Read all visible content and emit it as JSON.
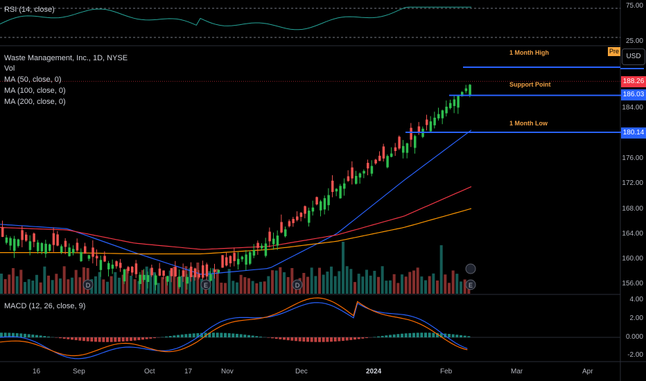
{
  "rsi": {
    "label": "RSI (14, close)",
    "ticks": [
      "75.00",
      "25.00"
    ]
  },
  "legend": {
    "symbol": "Waste Management, Inc., 1D, NYSE",
    "vol": "Vol",
    "ma50": "MA (50, close, 0)",
    "ma100": "MA (100, close, 0)",
    "ma200": "MA (200, close, 0)"
  },
  "macd": {
    "label": "MACD (12, 26, close, 9)",
    "ticks": [
      "4.00",
      "2.00",
      "0.000",
      "-2.00"
    ]
  },
  "price_axis": {
    "ticks": [
      "184.00",
      "176.00",
      "172.00",
      "168.00",
      "164.00",
      "160.00",
      "156.00"
    ]
  },
  "tags": {
    "current": "188.26",
    "support": "186.03",
    "low": "180.14"
  },
  "annotations": {
    "high": "1 Month High",
    "support": "Support Point",
    "low": "1 Month Low"
  },
  "buttons": {
    "usd": "USD",
    "pre": "Pre"
  },
  "x_axis": {
    "ticks": [
      "16",
      "Sep",
      "Oct",
      "17",
      "Nov",
      "Dec",
      "2024",
      "Feb",
      "Mar",
      "Apr"
    ]
  },
  "colors": {
    "up": "#26a69a",
    "up_candle": "#2ebd4f",
    "down": "#ef5350",
    "ma50": "#2962ff",
    "ma100": "#f23645",
    "ma200": "#ff9800",
    "annotation": "#f0a045"
  },
  "chart_data": {
    "type": "line",
    "x": [
      "Aug 16",
      "Sep",
      "Oct",
      "Oct 17",
      "Nov",
      "Dec",
      "2024",
      "Feb"
    ],
    "price_close": [
      163.5,
      161.8,
      157.5,
      157.0,
      163.0,
      171.5,
      178.3,
      188.3
    ],
    "ma50": [
      165.5,
      164.8,
      161.0,
      157.5,
      158.5,
      164.0,
      172.5,
      180.5
    ],
    "ma100": [
      165.0,
      164.6,
      162.5,
      161.5,
      162.0,
      163.8,
      166.8,
      171.5
    ],
    "ma200": [
      161.0,
      161.0,
      160.8,
      160.8,
      161.5,
      162.8,
      165.0,
      168.0
    ],
    "levels": {
      "one_month_high": 190.5,
      "support_point": 186.03,
      "one_month_low": 180.14,
      "last": 188.26
    },
    "ylim": [
      155,
      191
    ],
    "rsi_range": [
      25,
      75
    ],
    "macd_range": [
      -2.4,
      4.0
    ]
  }
}
